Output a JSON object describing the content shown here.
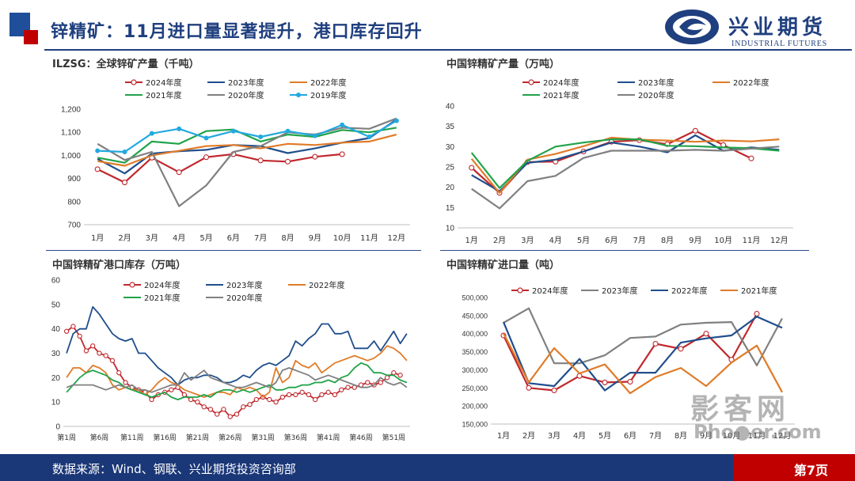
{
  "page": {
    "title": "锌精矿：11月进口量显著提升，港口库存回升",
    "logo": {
      "name": "兴业期货",
      "subtitle": "INDUSTRIAL FUTURES"
    },
    "footer_note": "数据来源：Wind、钢联、兴业期货投资咨询部",
    "page_number": "第7页",
    "watermark": {
      "top": "影客网",
      "bottom": "Pho●er.com"
    },
    "colors": {
      "brand_blue": "#1f3f7f",
      "brand_red": "#c00000",
      "footer_blue": "#1a3778"
    }
  },
  "chart_data": [
    {
      "id": "global",
      "type": "line",
      "title": "ILZSG：全球锌矿产量（千吨）",
      "categories": [
        "1月",
        "2月",
        "3月",
        "4月",
        "5月",
        "6月",
        "7月",
        "8月",
        "9月",
        "10月",
        "11月",
        "12月"
      ],
      "ylim": [
        700,
        1200
      ],
      "yticks": [
        700,
        800,
        900,
        1000,
        1100,
        1200
      ],
      "ytick_labels": [
        "700",
        "800",
        "900",
        "1,000",
        "1,100",
        "1,200"
      ],
      "legend_columns": 3,
      "series": [
        {
          "name": "2024年度",
          "color": "#c0282d",
          "marker": "hollow",
          "values": [
            940,
            883,
            990,
            927,
            992,
            1005,
            978,
            973,
            994,
            1005,
            null,
            null
          ]
        },
        {
          "name": "2023年度",
          "color": "#1f4e8c",
          "marker": "none",
          "values": [
            985,
            922,
            1008,
            1018,
            1024,
            1045,
            1040,
            1010,
            1030,
            1055,
            1075,
            1155
          ]
        },
        {
          "name": "2022年度",
          "color": "#e07b28",
          "marker": "none",
          "values": [
            975,
            955,
            1000,
            1020,
            1040,
            1045,
            1030,
            1050,
            1045,
            1055,
            1060,
            1090
          ]
        },
        {
          "name": "2021年度",
          "color": "#21a34a",
          "marker": "none",
          "values": [
            990,
            968,
            1060,
            1050,
            1105,
            1112,
            1060,
            1090,
            1080,
            1110,
            1100,
            1120
          ]
        },
        {
          "name": "2020年度",
          "color": "#808080",
          "marker": "none",
          "values": [
            1050,
            980,
            1015,
            780,
            870,
            1015,
            1040,
            1100,
            1090,
            1120,
            1115,
            1160
          ]
        },
        {
          "name": "2019年度",
          "color": "#23a9e0",
          "marker": "filled",
          "values": [
            1020,
            1015,
            1095,
            1115,
            1075,
            1105,
            1080,
            1105,
            1085,
            1132,
            1080,
            1150
          ]
        }
      ]
    },
    {
      "id": "china_prod",
      "type": "line",
      "title": "中国锌精矿产量（万吨）",
      "categories": [
        "1月",
        "2月",
        "3月",
        "4月",
        "5月",
        "6月",
        "7月",
        "8月",
        "9月",
        "10月",
        "11月",
        "12月"
      ],
      "ylim": [
        10,
        40
      ],
      "yticks": [
        10,
        15,
        20,
        25,
        30,
        35,
        40
      ],
      "ytick_labels": [
        "10",
        "15",
        "20",
        "25",
        "30",
        "35",
        "40"
      ],
      "legend_columns": 3,
      "series": [
        {
          "name": "2024年度",
          "color": "#c0282d",
          "marker": "hollow",
          "values": [
            24.8,
            18.6,
            26.2,
            26.3,
            28.8,
            31.2,
            31.6,
            30.6,
            33.9,
            30.4,
            27.1,
            null
          ]
        },
        {
          "name": "2023年度",
          "color": "#1f4e8c",
          "marker": "none",
          "values": [
            23.0,
            19.0,
            26.0,
            26.8,
            28.8,
            31.0,
            30.0,
            28.6,
            32.8,
            29.0,
            29.8,
            29.2
          ]
        },
        {
          "name": "2022年度",
          "color": "#e07b28",
          "marker": "none",
          "values": [
            27.0,
            18.6,
            26.8,
            28.2,
            30.1,
            32.2,
            31.7,
            31.5,
            31.2,
            31.5,
            31.3,
            31.8
          ]
        },
        {
          "name": "2021年度",
          "color": "#21a34a",
          "marker": "none",
          "values": [
            28.5,
            19.8,
            26.5,
            30.0,
            31.0,
            31.8,
            31.8,
            30.2,
            30.1,
            29.8,
            29.6,
            29.0
          ]
        },
        {
          "name": "2020年度",
          "color": "#808080",
          "marker": "none",
          "values": [
            19.6,
            14.8,
            21.5,
            22.8,
            27.2,
            29.0,
            29.0,
            29.0,
            29.2,
            29.0,
            29.5,
            30.0
          ]
        }
      ]
    },
    {
      "id": "port_stock",
      "type": "line",
      "title": "中国锌精矿港口库存（万吨）",
      "x_count": 53,
      "xtick_labels": [
        "第1周",
        "第6周",
        "第11周",
        "第16周",
        "第21周",
        "第26周",
        "第31周",
        "第36周",
        "第41周",
        "第46周",
        "第51周"
      ],
      "xtick_interval": 5,
      "ylim": [
        0,
        60
      ],
      "yticks": [
        0,
        10,
        20,
        30,
        40,
        50,
        60
      ],
      "ytick_labels": [
        "0",
        "10",
        "20",
        "30",
        "40",
        "50",
        "60"
      ],
      "legend_columns": 3,
      "series": [
        {
          "name": "2024年度",
          "color": "#c0282d",
          "marker": "hollow",
          "values": [
            39,
            41,
            37,
            31,
            33,
            30,
            29,
            27,
            22,
            18,
            16,
            15,
            14,
            11,
            13,
            14,
            15,
            16,
            13,
            11,
            10,
            8,
            7,
            5,
            7,
            4,
            5,
            8,
            9,
            11,
            12,
            11,
            10,
            12,
            13,
            13,
            14,
            13,
            11,
            13,
            14,
            13,
            15,
            16,
            16,
            17,
            18,
            17,
            18,
            20,
            22,
            21,
            null
          ]
        },
        {
          "name": "2023年度",
          "color": "#1f4e8c",
          "marker": "none",
          "values": [
            30,
            38,
            40,
            40,
            49,
            46,
            42,
            38,
            36,
            35,
            36,
            30,
            30,
            27,
            24,
            22,
            20,
            17,
            19,
            20,
            20,
            21,
            21,
            20,
            18,
            18,
            19,
            21,
            20,
            23,
            25,
            26,
            25,
            27,
            29,
            35,
            33,
            36,
            38,
            42,
            42,
            38,
            38,
            39,
            32,
            32,
            32,
            35,
            31,
            35,
            39,
            34,
            38
          ]
        },
        {
          "name": "2022年度",
          "color": "#e07b28",
          "marker": "none",
          "values": [
            20,
            24,
            24,
            22,
            25,
            24,
            22,
            17,
            15,
            16,
            15,
            15,
            13,
            15,
            18,
            20,
            18,
            17,
            15,
            14,
            13,
            12,
            13,
            14,
            14,
            13,
            16,
            15,
            16,
            15,
            12,
            14,
            24,
            18,
            20,
            27,
            25,
            24,
            26,
            22,
            24,
            26,
            27,
            28,
            29,
            28,
            27,
            28,
            30,
            33,
            32,
            30,
            27
          ]
        },
        {
          "name": "2021年度",
          "color": "#21a34a",
          "marker": "none",
          "values": [
            14,
            17,
            20,
            22,
            23,
            22,
            21,
            19,
            18,
            16,
            15,
            14,
            13,
            12,
            13,
            14,
            12,
            11,
            12,
            12,
            12,
            13,
            12,
            14,
            15,
            15,
            14,
            15,
            14,
            15,
            16,
            17,
            15,
            15,
            16,
            16,
            17,
            17,
            18,
            18,
            19,
            18,
            20,
            21,
            24,
            26,
            25,
            22,
            22,
            21,
            21,
            19,
            18
          ]
        },
        {
          "name": "2020年度",
          "color": "#808080",
          "marker": "none",
          "values": [
            16,
            17,
            17,
            17,
            17,
            16,
            15,
            16,
            17,
            16,
            17,
            15,
            15,
            14,
            15,
            16,
            17,
            17,
            22,
            19,
            21,
            23,
            20,
            19,
            18,
            17,
            16,
            16,
            17,
            18,
            17,
            16,
            18,
            23,
            24,
            23,
            22,
            21,
            19,
            20,
            21,
            20,
            19,
            18,
            17,
            16,
            16,
            17,
            20,
            18,
            17,
            18,
            16
          ]
        }
      ]
    },
    {
      "id": "imports",
      "type": "line",
      "title": "中国锌精矿进口量（吨）",
      "categories": [
        "1月",
        "2月",
        "3月",
        "4月",
        "5月",
        "6月",
        "7月",
        "8月",
        "9月",
        "10月",
        "11月",
        "12月"
      ],
      "ylim": [
        150000,
        500000
      ],
      "yticks": [
        150000,
        200000,
        250000,
        300000,
        350000,
        400000,
        450000,
        500000
      ],
      "ytick_labels": [
        "150,000",
        "200,000",
        "250,000",
        "300,000",
        "350,000",
        "400,000",
        "450,000",
        "500,000"
      ],
      "legend_columns": 4,
      "series": [
        {
          "name": "2024年度",
          "color": "#c0282d",
          "marker": "hollow",
          "values": [
            395000,
            250000,
            243000,
            283000,
            265000,
            267000,
            372000,
            358000,
            400000,
            328000,
            455000,
            null
          ]
        },
        {
          "name": "2023年度",
          "color": "#808080",
          "marker": "none",
          "values": [
            430000,
            470000,
            318000,
            318000,
            340000,
            388000,
            392000,
            425000,
            430000,
            432000,
            312000,
            442000
          ]
        },
        {
          "name": "2022年度",
          "color": "#1f4e8c",
          "marker": "none",
          "values": [
            432000,
            263000,
            255000,
            330000,
            243000,
            292000,
            292000,
            375000,
            387000,
            395000,
            447000,
            416000
          ]
        },
        {
          "name": "2021年度",
          "color": "#e07b28",
          "marker": "none",
          "values": [
            401000,
            265000,
            360000,
            290000,
            315000,
            235000,
            280000,
            305000,
            255000,
            320000,
            367000,
            238000
          ]
        }
      ]
    }
  ]
}
